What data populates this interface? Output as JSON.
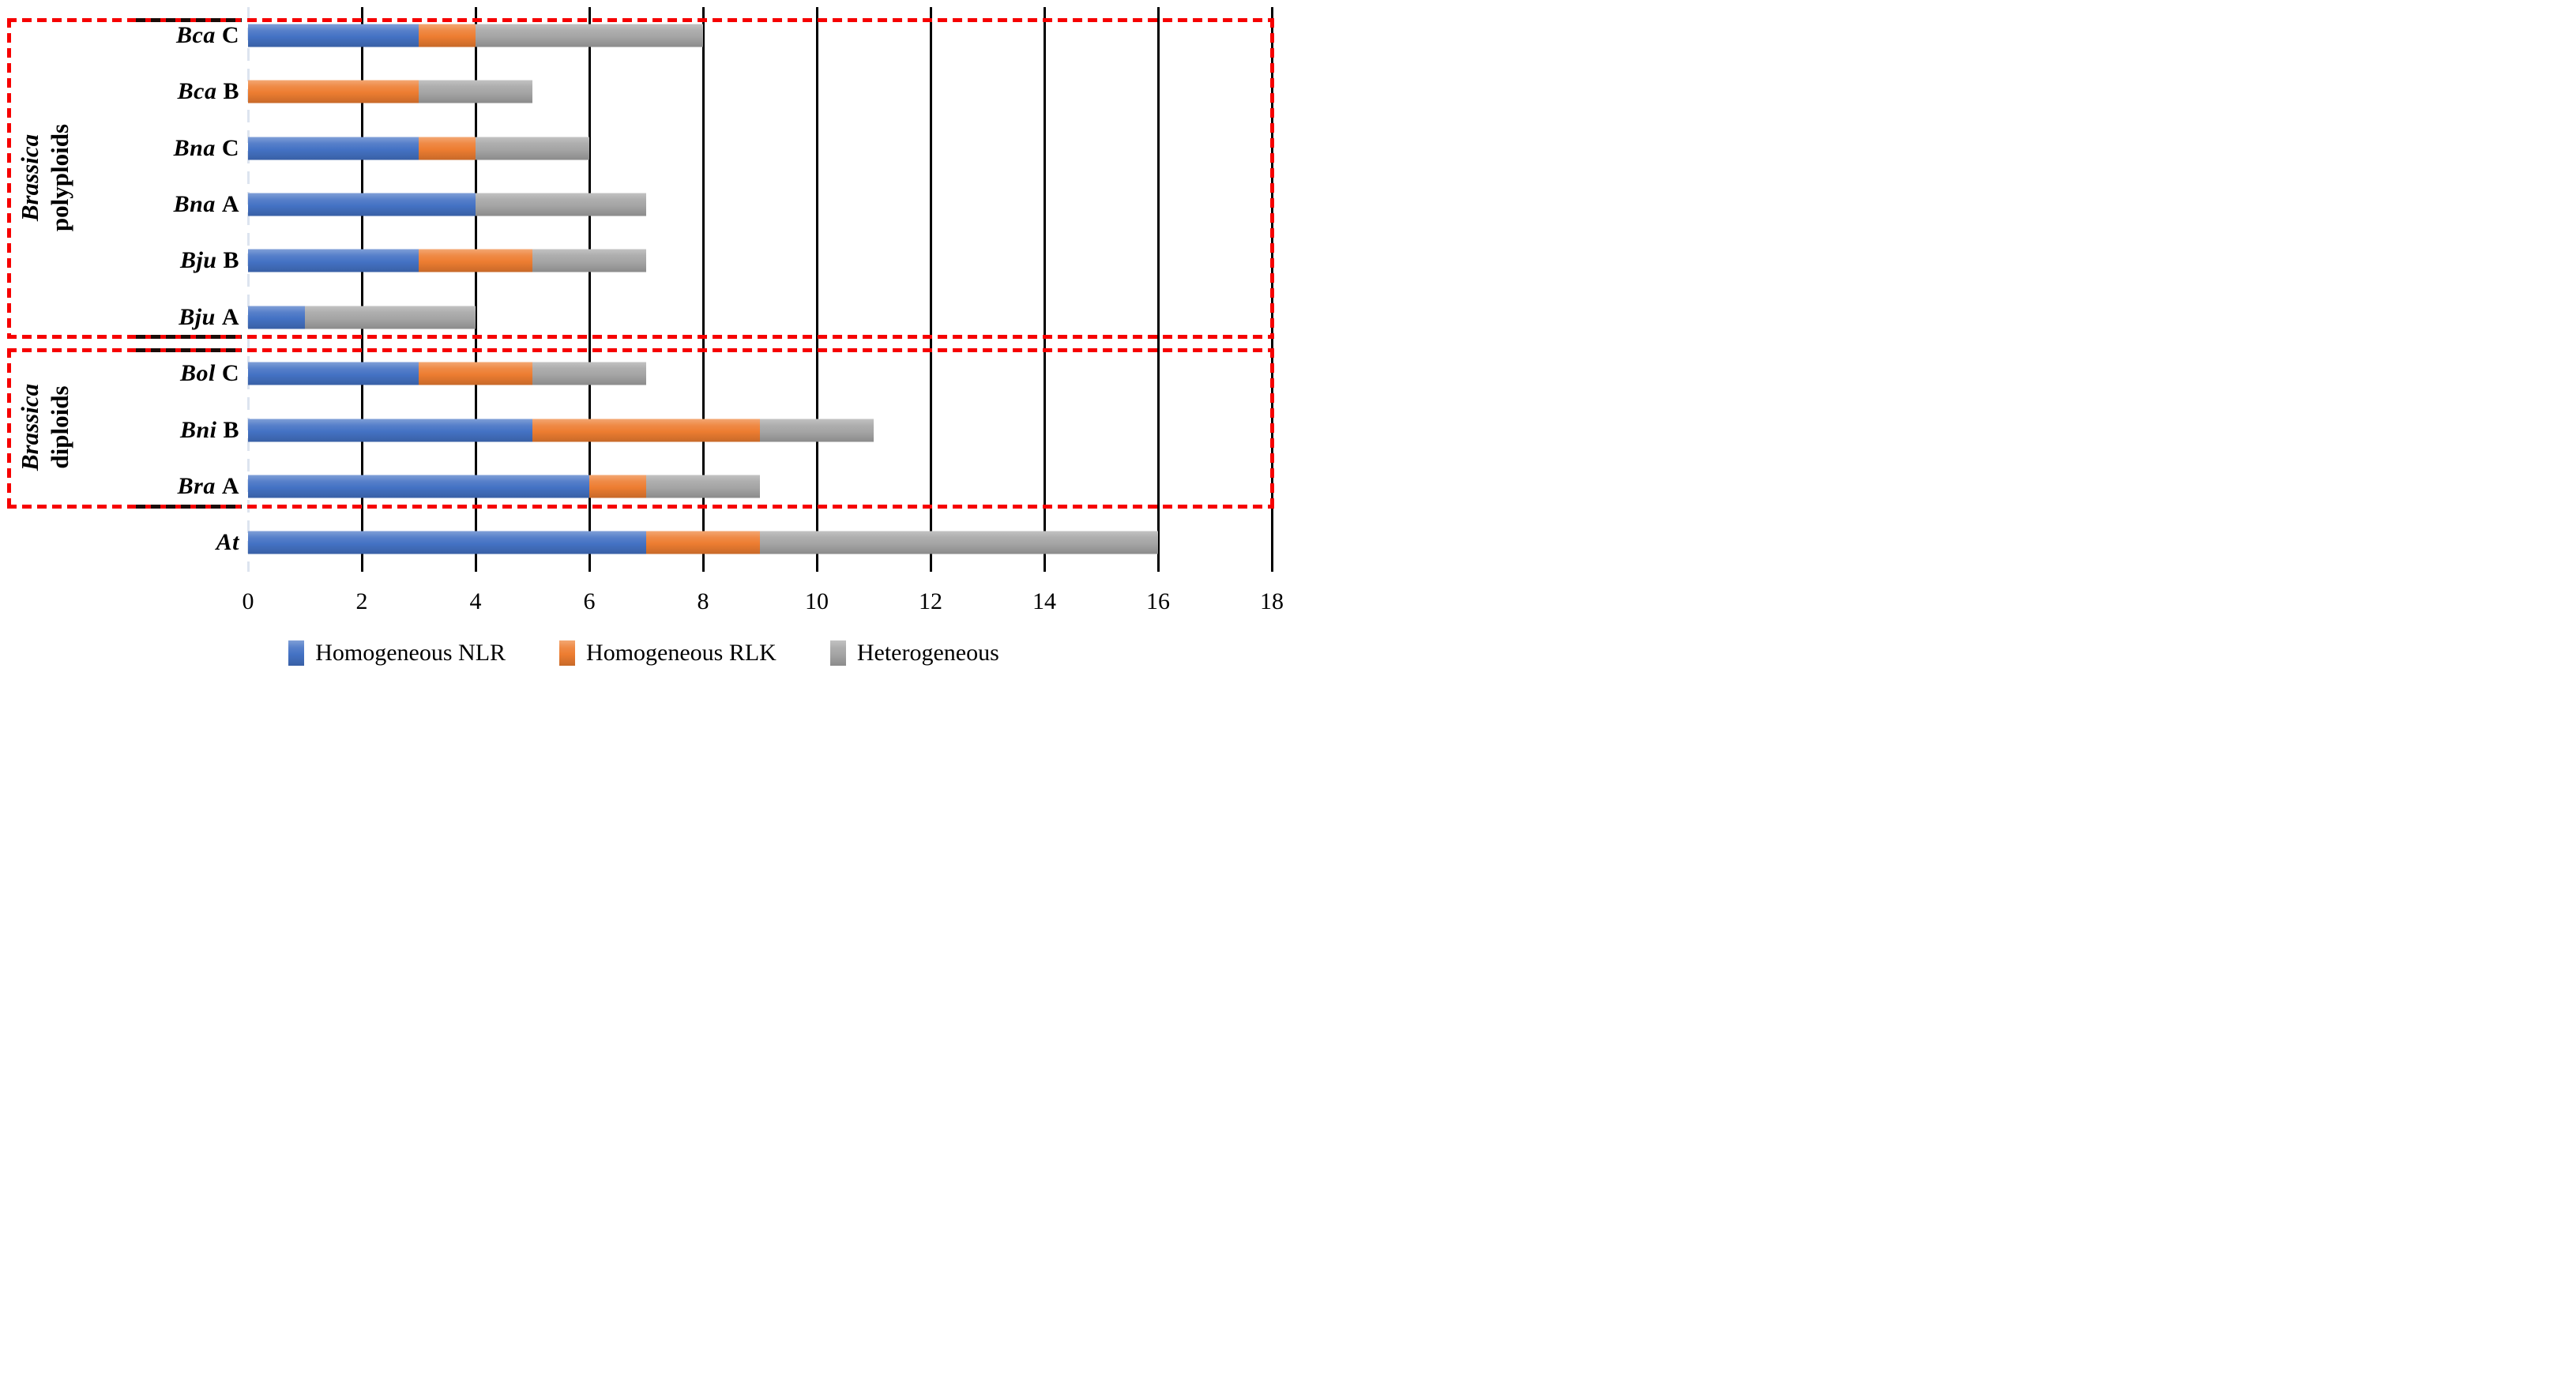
{
  "colors": {
    "background": "#ffffff",
    "gridline_black": "#000000",
    "zero_line_light": "#dde4ef",
    "group_box_red": "#f60000",
    "overlay_dash_black": "#1c0b08",
    "text_black": "#000000"
  },
  "chart_data": {
    "type": "bar",
    "orientation": "horizontal",
    "stacked": true,
    "title": "",
    "xlabel": "",
    "ylabel": "",
    "xlim": [
      0,
      18
    ],
    "xticks": [
      0,
      2,
      4,
      6,
      8,
      10,
      12,
      14,
      16,
      18
    ],
    "grid": "vertical gridlines on, horizontal off",
    "legend_position": "bottom",
    "categories": [
      {
        "italic": "Bca",
        "rest": "C"
      },
      {
        "italic": "Bca",
        "rest": "B"
      },
      {
        "italic": "Bna",
        "rest": "C"
      },
      {
        "italic": "Bna",
        "rest": "A"
      },
      {
        "italic": "Bju",
        "rest": "B"
      },
      {
        "italic": "Bju",
        "rest": "A"
      },
      {
        "italic": "Bol",
        "rest": "C"
      },
      {
        "italic": "Bni",
        "rest": "B"
      },
      {
        "italic": "Bra",
        "rest": "A"
      },
      {
        "italic": "At",
        "rest": ""
      }
    ],
    "series": [
      {
        "name": "Homogeneous NLR",
        "color": "#4472C4",
        "values": [
          3,
          0,
          3,
          4,
          3,
          1,
          3,
          5,
          6,
          7
        ]
      },
      {
        "name": "Homogeneous RLK",
        "color": "#ED7D31",
        "values": [
          1,
          3,
          1,
          0,
          2,
          0,
          2,
          4,
          1,
          2
        ]
      },
      {
        "name": "Heterogeneous",
        "color": "#A5A5A5",
        "values": [
          4,
          2,
          2,
          3,
          2,
          3,
          2,
          2,
          2,
          7
        ]
      }
    ],
    "groups": [
      {
        "italic": "Brassica",
        "rest": "polyploids",
        "from_row": 0,
        "to_row": 5
      },
      {
        "italic": "Brassica",
        "rest": "diploids",
        "from_row": 6,
        "to_row": 8
      }
    ]
  }
}
